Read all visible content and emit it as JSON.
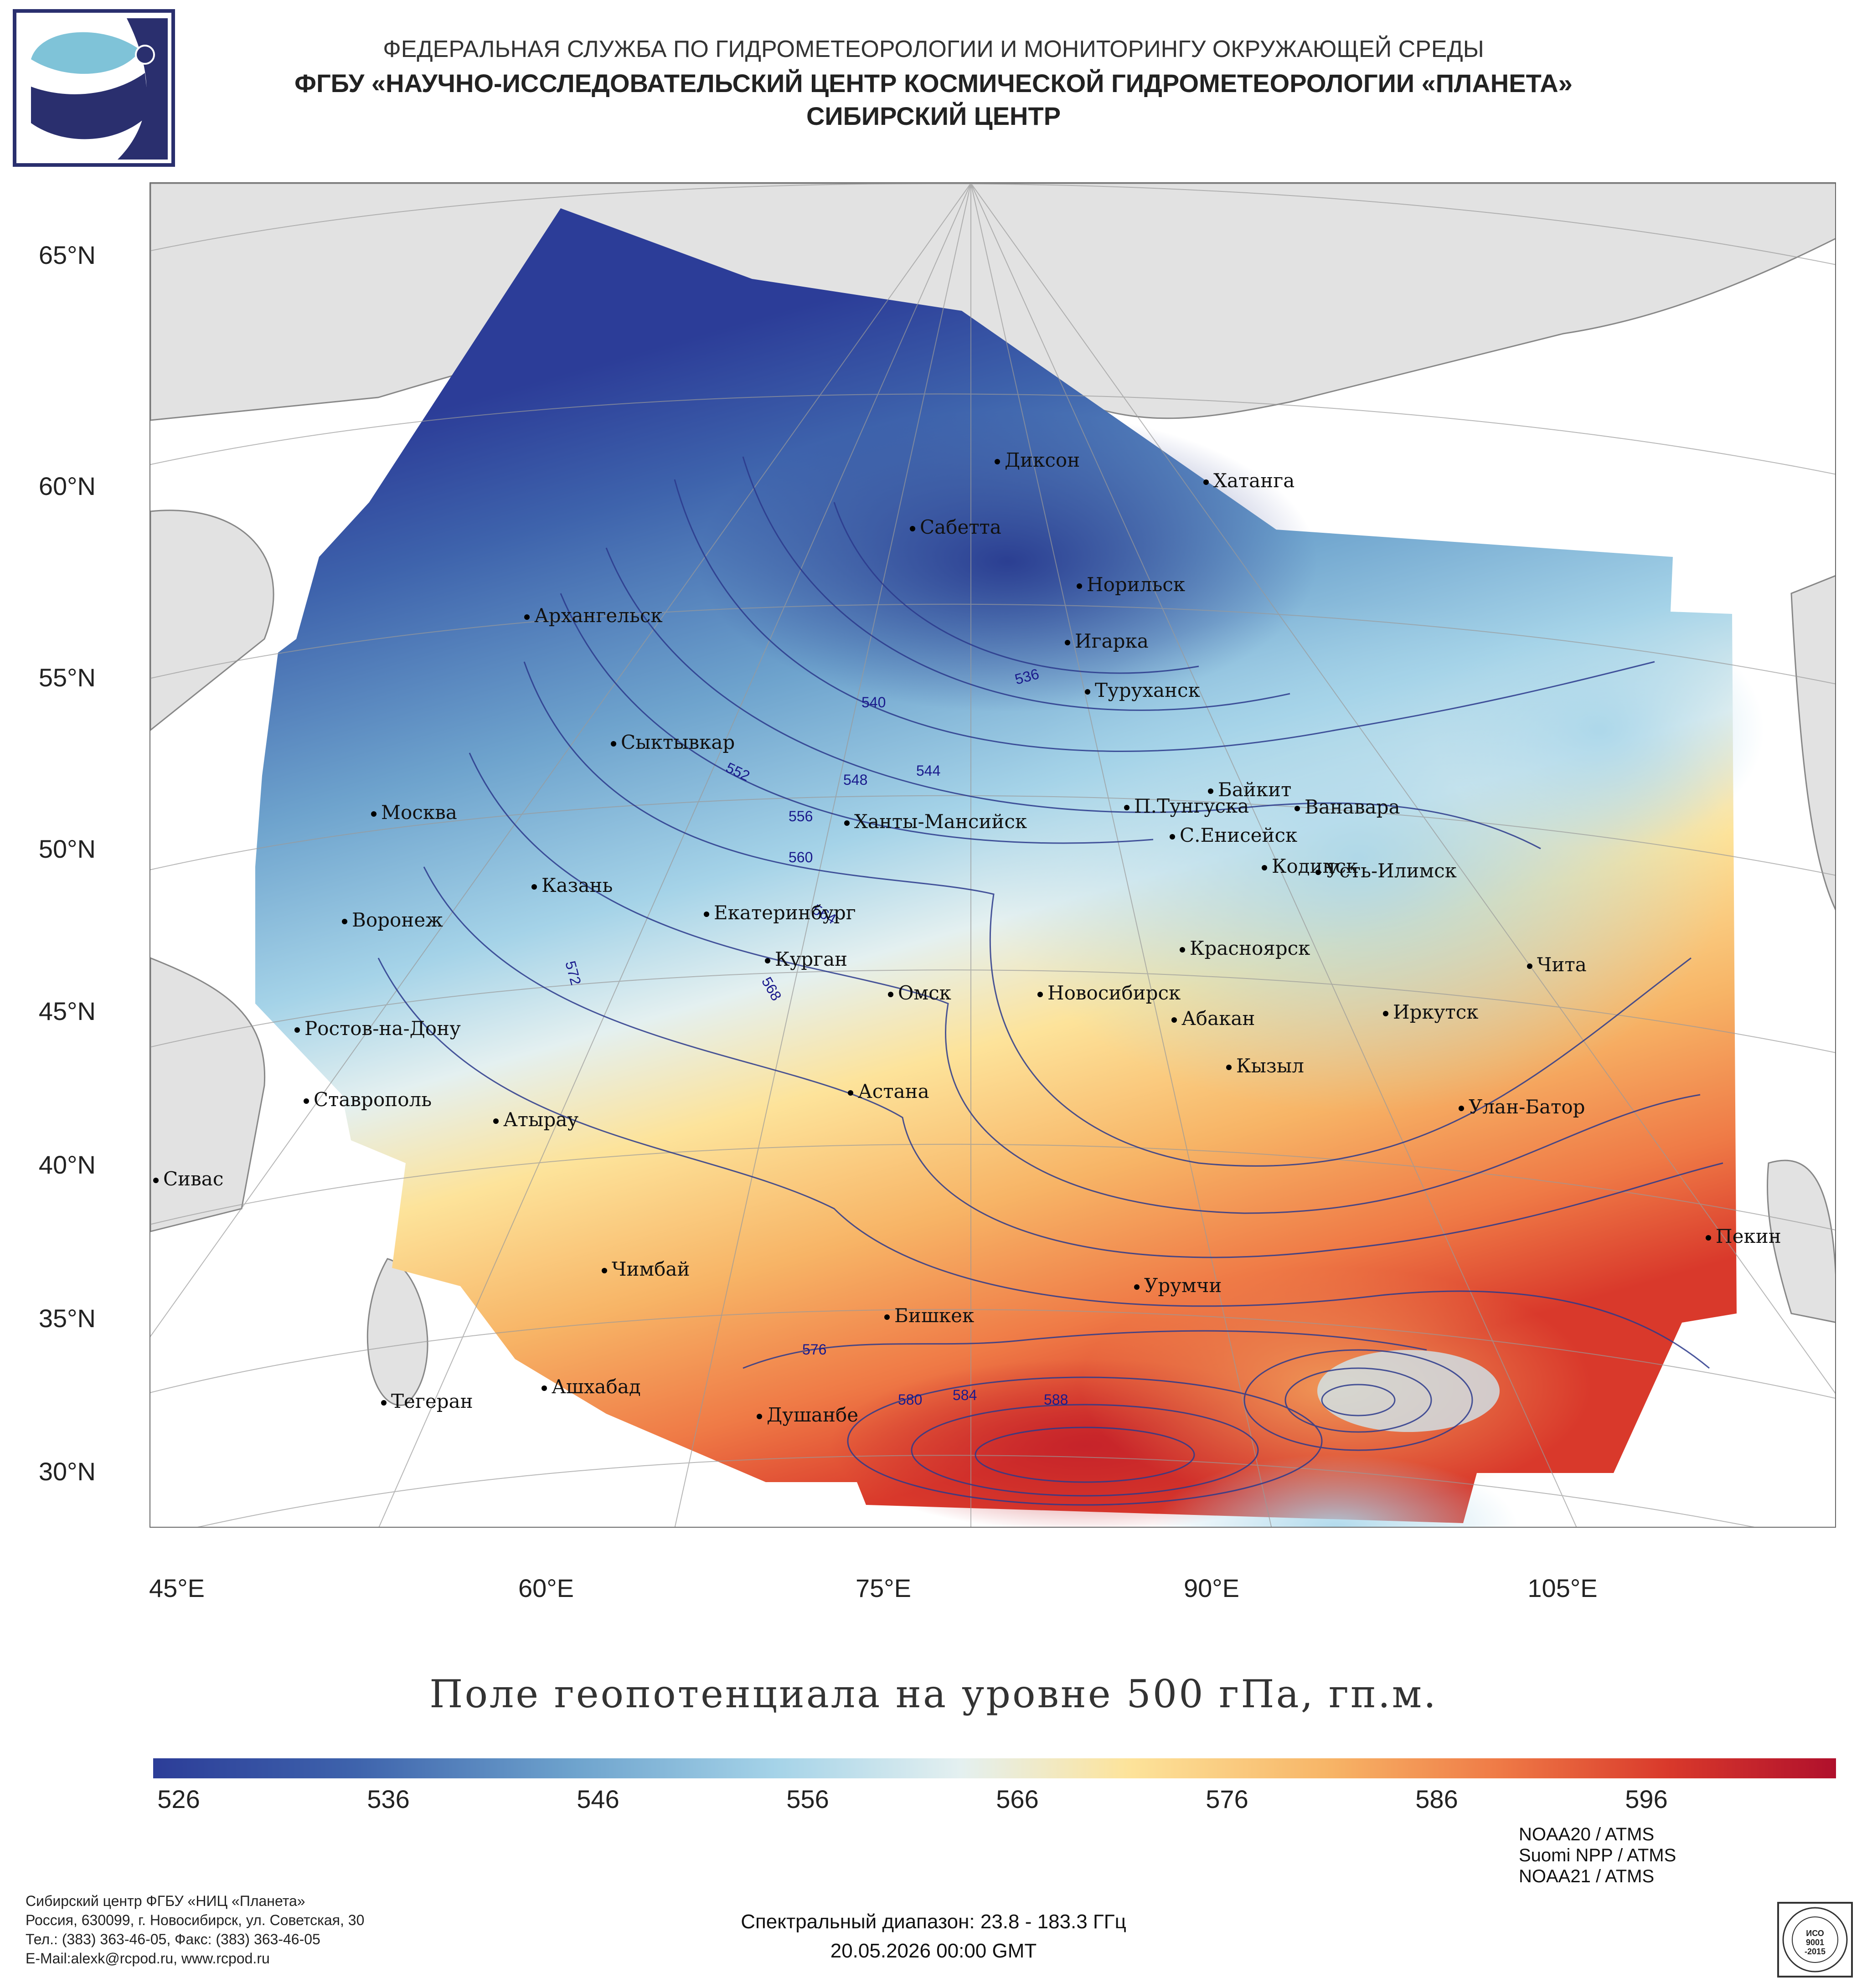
{
  "header": {
    "line1": "ФЕДЕРАЛЬНАЯ СЛУЖБА ПО ГИДРОМЕТЕОРОЛОГИИ И МОНИТОРИНГУ ОКРУЖАЮЩЕЙ СРЕДЫ",
    "line2": "ФГБУ «НАУЧНО-ИССЛЕДОВАТЕЛЬСКИЙ ЦЕНТР КОСМИЧЕСКОЙ ГИДРОМЕТЕОРОЛОГИИ «ПЛАНЕТА»",
    "line3": "СИБИРСКИЙ ЦЕНТР"
  },
  "map": {
    "lat_labels": [
      "65°N",
      "60°N",
      "55°N",
      "50°N",
      "45°N",
      "40°N",
      "35°N",
      "30°N"
    ],
    "lon_labels": [
      "45°E",
      "60°E",
      "75°E",
      "90°E",
      "105°E"
    ],
    "cities": [
      {
        "name": "Диксон"
      },
      {
        "name": "Хатанга"
      },
      {
        "name": "Сабетта"
      },
      {
        "name": "Норильск"
      },
      {
        "name": "Архангельск"
      },
      {
        "name": "Игарка"
      },
      {
        "name": "Туруханск"
      },
      {
        "name": "Сыктывкар"
      },
      {
        "name": "Байкит"
      },
      {
        "name": "Москва"
      },
      {
        "name": "Ханты-Мансийск"
      },
      {
        "name": "П.Тунгуска"
      },
      {
        "name": "Ванавара"
      },
      {
        "name": "С.Енисейск"
      },
      {
        "name": "Казань"
      },
      {
        "name": "Кодинск"
      },
      {
        "name": "Усть-Илимск"
      },
      {
        "name": "Екатеринбург"
      },
      {
        "name": "Воронеж"
      },
      {
        "name": "Красноярск"
      },
      {
        "name": "Курган"
      },
      {
        "name": "Чита"
      },
      {
        "name": "Омск"
      },
      {
        "name": "Новосибирск"
      },
      {
        "name": "Ростов-на-Дону"
      },
      {
        "name": "Абакан"
      },
      {
        "name": "Иркутск"
      },
      {
        "name": "Кызыл"
      },
      {
        "name": "Ставрополь"
      },
      {
        "name": "Астана"
      },
      {
        "name": "Улан-Батор"
      },
      {
        "name": "Атырау"
      },
      {
        "name": "Сивас"
      },
      {
        "name": "Пекин"
      },
      {
        "name": "Чимбай"
      },
      {
        "name": "Урумчи"
      },
      {
        "name": "Бишкек"
      },
      {
        "name": "Ашхабад"
      },
      {
        "name": "Тегеран"
      },
      {
        "name": "Душанбе"
      }
    ],
    "contour_labels": [
      "536",
      "540",
      "544",
      "548",
      "552",
      "556",
      "560",
      "564",
      "568",
      "572",
      "576",
      "580",
      "584",
      "588"
    ]
  },
  "title": "Поле геопотенциала на уровне 500 гПа, гп.м.",
  "colorbar": {
    "ticks": [
      "526",
      "536",
      "546",
      "556",
      "566",
      "576",
      "586",
      "596"
    ],
    "colors": [
      "#2c3d98",
      "#3e63ac",
      "#6ea3cd",
      "#a5d3e8",
      "#e4f0f0",
      "#fde39a",
      "#f7b466",
      "#ef7a46",
      "#d9392b",
      "#b0102c"
    ]
  },
  "footer": {
    "org_line1": "Сибирский центр ФГБУ «НИЦ «Планета»",
    "org_line2": "Россия, 630099, г. Новосибирск, ул. Советская, 30",
    "org_line3": "Тел.: (383) 363-46-05, Факс: (383) 363-46-05",
    "org_line4": "E-Mail:alexk@rcpod.ru, www.rcpod.ru",
    "satellites": [
      "NOAA20 / ATMS",
      "Suomi NPP / ATMS",
      "NOAA21 / ATMS"
    ],
    "spectral": "Спектральный диапазон: 23.8 - 183.3 ГГц",
    "datetime": "20.05.2026 00:00 GMT",
    "iso_text": "ИСО 9001 -2015",
    "iso_ring": "ДОБРОСОВЕСТНЫЙ ПОСТАВЩИК"
  }
}
